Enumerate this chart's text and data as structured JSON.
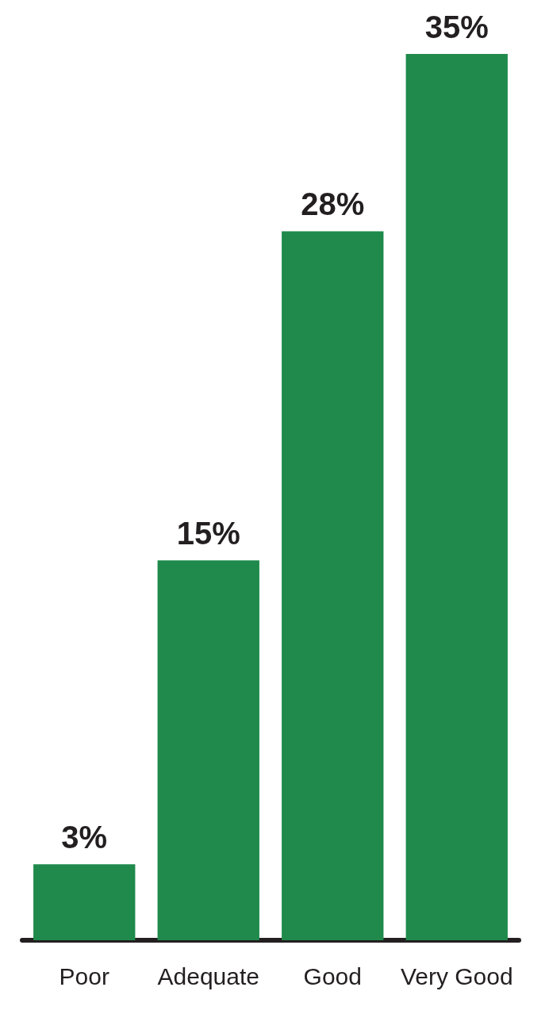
{
  "chart_data": {
    "type": "bar",
    "categories": [
      "Poor",
      "Adequate",
      "Good",
      "Very Good"
    ],
    "values": [
      3,
      15,
      28,
      35
    ],
    "value_labels": [
      "3%",
      "15%",
      "28%",
      "35%"
    ],
    "color": "#1f8a4b"
  }
}
